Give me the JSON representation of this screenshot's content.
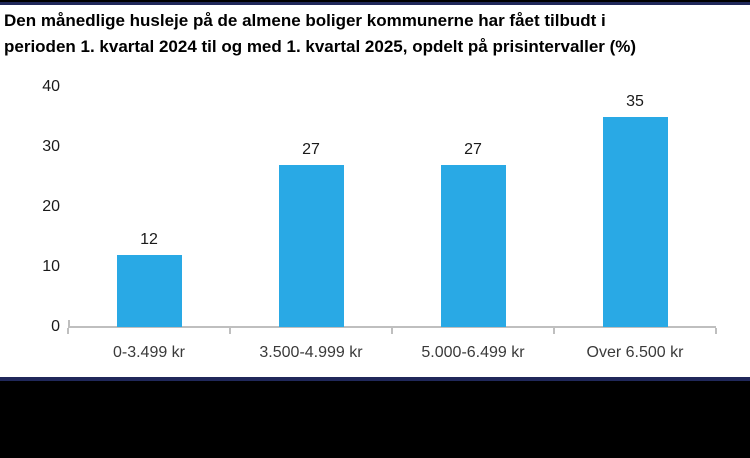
{
  "title": {
    "line1": "Den månedlige husleje på de almene boliger kommunerne har fået tilbudt i",
    "line2": "perioden 1. kvartal 2024 til og med 1. kvartal 2025, opdelt på prisintervaller (%)"
  },
  "chart_data": {
    "type": "bar",
    "title": "Den månedlige husleje på de almene boliger kommunerne har fået tilbudt i perioden 1. kvartal 2024 til og med 1. kvartal 2025, opdelt på prisintervaller (%)",
    "categories": [
      "0-3.499 kr",
      "3.500-4.999 kr",
      "5.000-6.499 kr",
      "Over 6.500 kr"
    ],
    "values": [
      12,
      27,
      27,
      35
    ],
    "data_labels": [
      "12",
      "27",
      "27",
      "35"
    ],
    "xlabel": "",
    "ylabel": "",
    "ylim": [
      0,
      40
    ],
    "yticks": [
      0,
      10,
      20,
      30,
      40
    ],
    "grid": false,
    "legend": false,
    "bar_color": "#29a9e5",
    "axis_color": "#bfbfbf"
  },
  "colors": {
    "border_navy": "#20285a",
    "border_black": "#000000",
    "title_text": "#000000",
    "tick_text": "#1a1a1a",
    "category_text": "#3a3a3a"
  }
}
